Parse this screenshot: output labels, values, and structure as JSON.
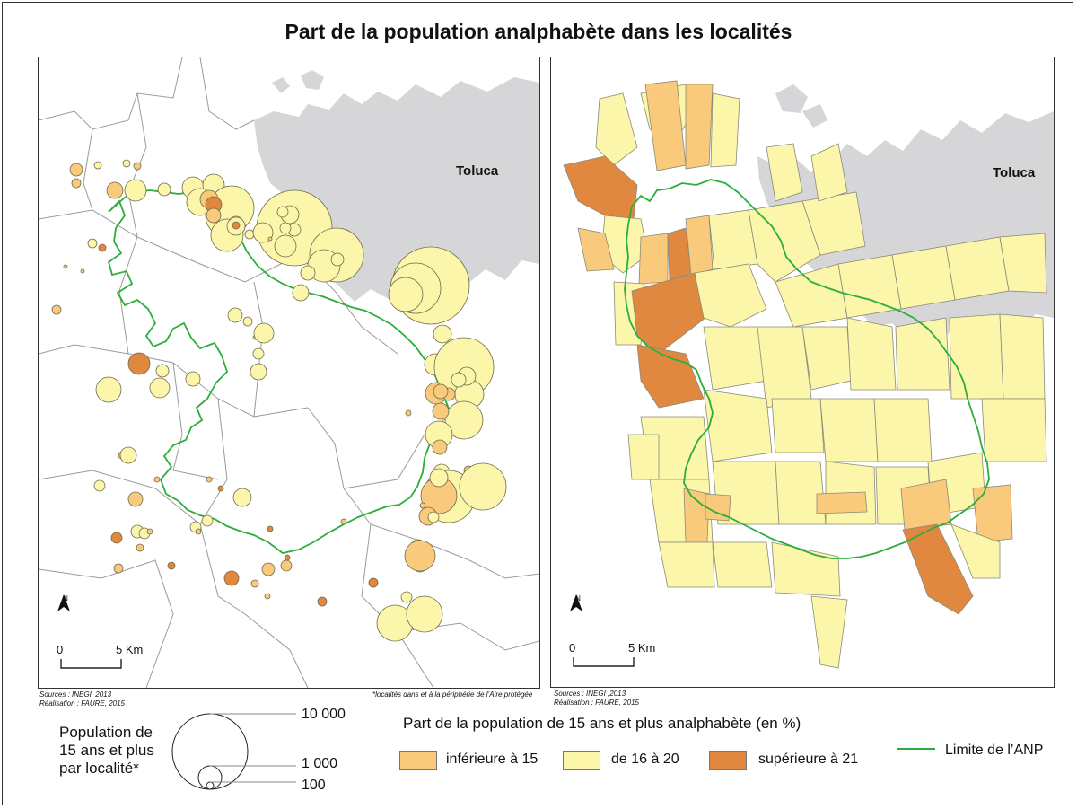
{
  "title": "Part de la population analphabète dans les localités",
  "colors": {
    "low": "#f9c97c",
    "mid": "#fbf6aa",
    "high": "#e0883f",
    "city": "#d6d6d8",
    "boundary": "#2bae3b",
    "admin": "#9a9a9a"
  },
  "left_map": {
    "city_label": "Toluca",
    "north_label": "N",
    "scale_start": "0",
    "scale_end": "5 Km",
    "sources_line1": "Sources : INEGI, 2013",
    "sources_line2": "Réalisation : FAURE, 2015",
    "footnote": "*localités dans et à la périphérie de l’Aire protégée"
  },
  "right_map": {
    "city_label": "Toluca",
    "north_label": "N",
    "scale_start": "0",
    "scale_end": "5 Km",
    "sources_line1": "Sources : INEGI ,2013",
    "sources_line2": "Réalisation : FAURE, 2015"
  },
  "legend": {
    "population_title_lines": [
      "Population de",
      "15 ans et plus",
      "par localité*"
    ],
    "population_values": [
      "10 000",
      "1 000",
      "100"
    ],
    "share_title": "Part de la population de 15 ans et plus analphabète (en %)",
    "classes": [
      {
        "label": "inférieure à 15",
        "color_key": "low"
      },
      {
        "label": "de 16 à 20",
        "color_key": "mid"
      },
      {
        "label": "supérieure à 21",
        "color_key": "high"
      }
    ],
    "boundary_label": "Limite de l’ANP"
  }
}
